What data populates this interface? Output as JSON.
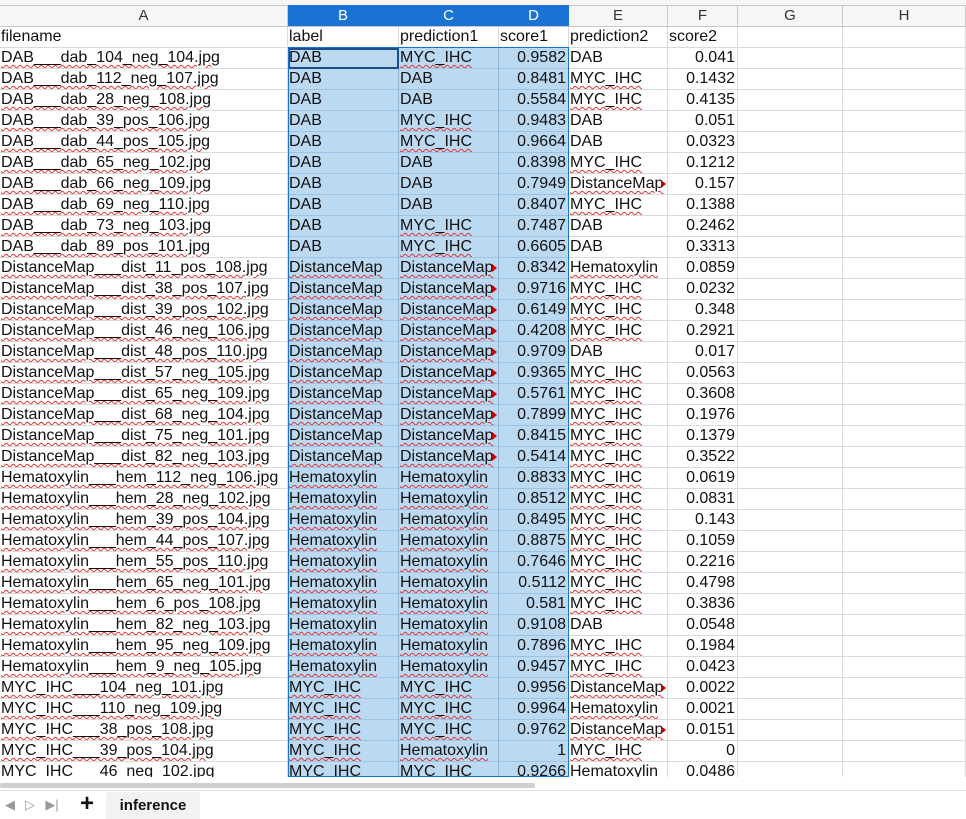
{
  "columns": [
    "A",
    "B",
    "C",
    "D",
    "E",
    "F",
    "G",
    "H"
  ],
  "sheet_tab": "inference",
  "rows": [
    [
      "filename",
      "label",
      "prediction1",
      "score1",
      "prediction2",
      "score2"
    ],
    [
      "DAB___dab_104_neg_104.jpg",
      "DAB",
      "MYC_IHC",
      "0.9582",
      "DAB",
      "0.041"
    ],
    [
      "DAB___dab_112_neg_107.jpg",
      "DAB",
      "DAB",
      "0.8481",
      "MYC_IHC",
      "0.1432"
    ],
    [
      "DAB___dab_28_neg_108.jpg",
      "DAB",
      "DAB",
      "0.5584",
      "MYC_IHC",
      "0.4135"
    ],
    [
      "DAB___dab_39_pos_106.jpg",
      "DAB",
      "MYC_IHC",
      "0.9483",
      "DAB",
      "0.051"
    ],
    [
      "DAB___dab_44_pos_105.jpg",
      "DAB",
      "MYC_IHC",
      "0.9664",
      "DAB",
      "0.0323"
    ],
    [
      "DAB___dab_65_neg_102.jpg",
      "DAB",
      "DAB",
      "0.8398",
      "MYC_IHC",
      "0.1212"
    ],
    [
      "DAB___dab_66_neg_109.jpg",
      "DAB",
      "DAB",
      "0.7949",
      "DistanceMap",
      "0.157"
    ],
    [
      "DAB___dab_69_neg_110.jpg",
      "DAB",
      "DAB",
      "0.8407",
      "MYC_IHC",
      "0.1388"
    ],
    [
      "DAB___dab_73_neg_103.jpg",
      "DAB",
      "MYC_IHC",
      "0.7487",
      "DAB",
      "0.2462"
    ],
    [
      "DAB___dab_89_pos_101.jpg",
      "DAB",
      "MYC_IHC",
      "0.6605",
      "DAB",
      "0.3313"
    ],
    [
      "DistanceMap___dist_11_pos_108.jpg",
      "DistanceMap",
      "DistanceMap",
      "0.8342",
      "Hematoxylin",
      "0.0859"
    ],
    [
      "DistanceMap___dist_38_pos_107.jpg",
      "DistanceMap",
      "DistanceMap",
      "0.9716",
      "MYC_IHC",
      "0.0232"
    ],
    [
      "DistanceMap___dist_39_pos_102.jpg",
      "DistanceMap",
      "DistanceMap",
      "0.6149",
      "MYC_IHC",
      "0.348"
    ],
    [
      "DistanceMap___dist_46_neg_106.jpg",
      "DistanceMap",
      "DistanceMap",
      "0.4208",
      "MYC_IHC",
      "0.2921"
    ],
    [
      "DistanceMap___dist_48_pos_110.jpg",
      "DistanceMap",
      "DistanceMap",
      "0.9709",
      "DAB",
      "0.017"
    ],
    [
      "DistanceMap___dist_57_neg_105.jpg",
      "DistanceMap",
      "DistanceMap",
      "0.9365",
      "MYC_IHC",
      "0.0563"
    ],
    [
      "DistanceMap___dist_65_neg_109.jpg",
      "DistanceMap",
      "DistanceMap",
      "0.5761",
      "MYC_IHC",
      "0.3608"
    ],
    [
      "DistanceMap___dist_68_neg_104.jpg",
      "DistanceMap",
      "DistanceMap",
      "0.7899",
      "MYC_IHC",
      "0.1976"
    ],
    [
      "DistanceMap___dist_75_neg_101.jpg",
      "DistanceMap",
      "DistanceMap",
      "0.8415",
      "MYC_IHC",
      "0.1379"
    ],
    [
      "DistanceMap___dist_82_neg_103.jpg",
      "DistanceMap",
      "DistanceMap",
      "0.5414",
      "MYC_IHC",
      "0.3522"
    ],
    [
      "Hematoxylin___hem_112_neg_106.jpg",
      "Hematoxylin",
      "Hematoxylin",
      "0.8833",
      "MYC_IHC",
      "0.0619"
    ],
    [
      "Hematoxylin___hem_28_neg_102.jpg",
      "Hematoxylin",
      "Hematoxylin",
      "0.8512",
      "MYC_IHC",
      "0.0831"
    ],
    [
      "Hematoxylin___hem_39_pos_104.jpg",
      "Hematoxylin",
      "Hematoxylin",
      "0.8495",
      "MYC_IHC",
      "0.143"
    ],
    [
      "Hematoxylin___hem_44_pos_107.jpg",
      "Hematoxylin",
      "Hematoxylin",
      "0.8875",
      "MYC_IHC",
      "0.1059"
    ],
    [
      "Hematoxylin___hem_55_pos_110.jpg",
      "Hematoxylin",
      "Hematoxylin",
      "0.7646",
      "MYC_IHC",
      "0.2216"
    ],
    [
      "Hematoxylin___hem_65_neg_101.jpg",
      "Hematoxylin",
      "Hematoxylin",
      "0.5112",
      "MYC_IHC",
      "0.4798"
    ],
    [
      "Hematoxylin___hem_6_pos_108.jpg",
      "Hematoxylin",
      "Hematoxylin",
      "0.581",
      "MYC_IHC",
      "0.3836"
    ],
    [
      "Hematoxylin___hem_82_neg_103.jpg",
      "Hematoxylin",
      "Hematoxylin",
      "0.9108",
      "DAB",
      "0.0548"
    ],
    [
      "Hematoxylin___hem_95_neg_109.jpg",
      "Hematoxylin",
      "Hematoxylin",
      "0.7896",
      "MYC_IHC",
      "0.1984"
    ],
    [
      "Hematoxylin___hem_9_neg_105.jpg",
      "Hematoxylin",
      "Hematoxylin",
      "0.9457",
      "MYC_IHC",
      "0.0423"
    ],
    [
      "MYC_IHC___104_neg_101.jpg",
      "MYC_IHC",
      "MYC_IHC",
      "0.9956",
      "DistanceMap",
      "0.0022"
    ],
    [
      "MYC_IHC___110_neg_109.jpg",
      "MYC_IHC",
      "MYC_IHC",
      "0.9964",
      "Hematoxylin",
      "0.0021"
    ],
    [
      "MYC_IHC___38_pos_108.jpg",
      "MYC_IHC",
      "MYC_IHC",
      "0.9762",
      "DistanceMap",
      "0.0151"
    ],
    [
      "MYC_IHC___39_pos_104.jpg",
      "MYC_IHC",
      "Hematoxylin",
      "1",
      "MYC_IHC",
      "0"
    ],
    [
      "MYC_IHC___46_neg_102.jpg",
      "MYC_IHC",
      "MYC_IHC",
      "0.9266",
      "Hematoxylin",
      "0.0486"
    ]
  ]
}
